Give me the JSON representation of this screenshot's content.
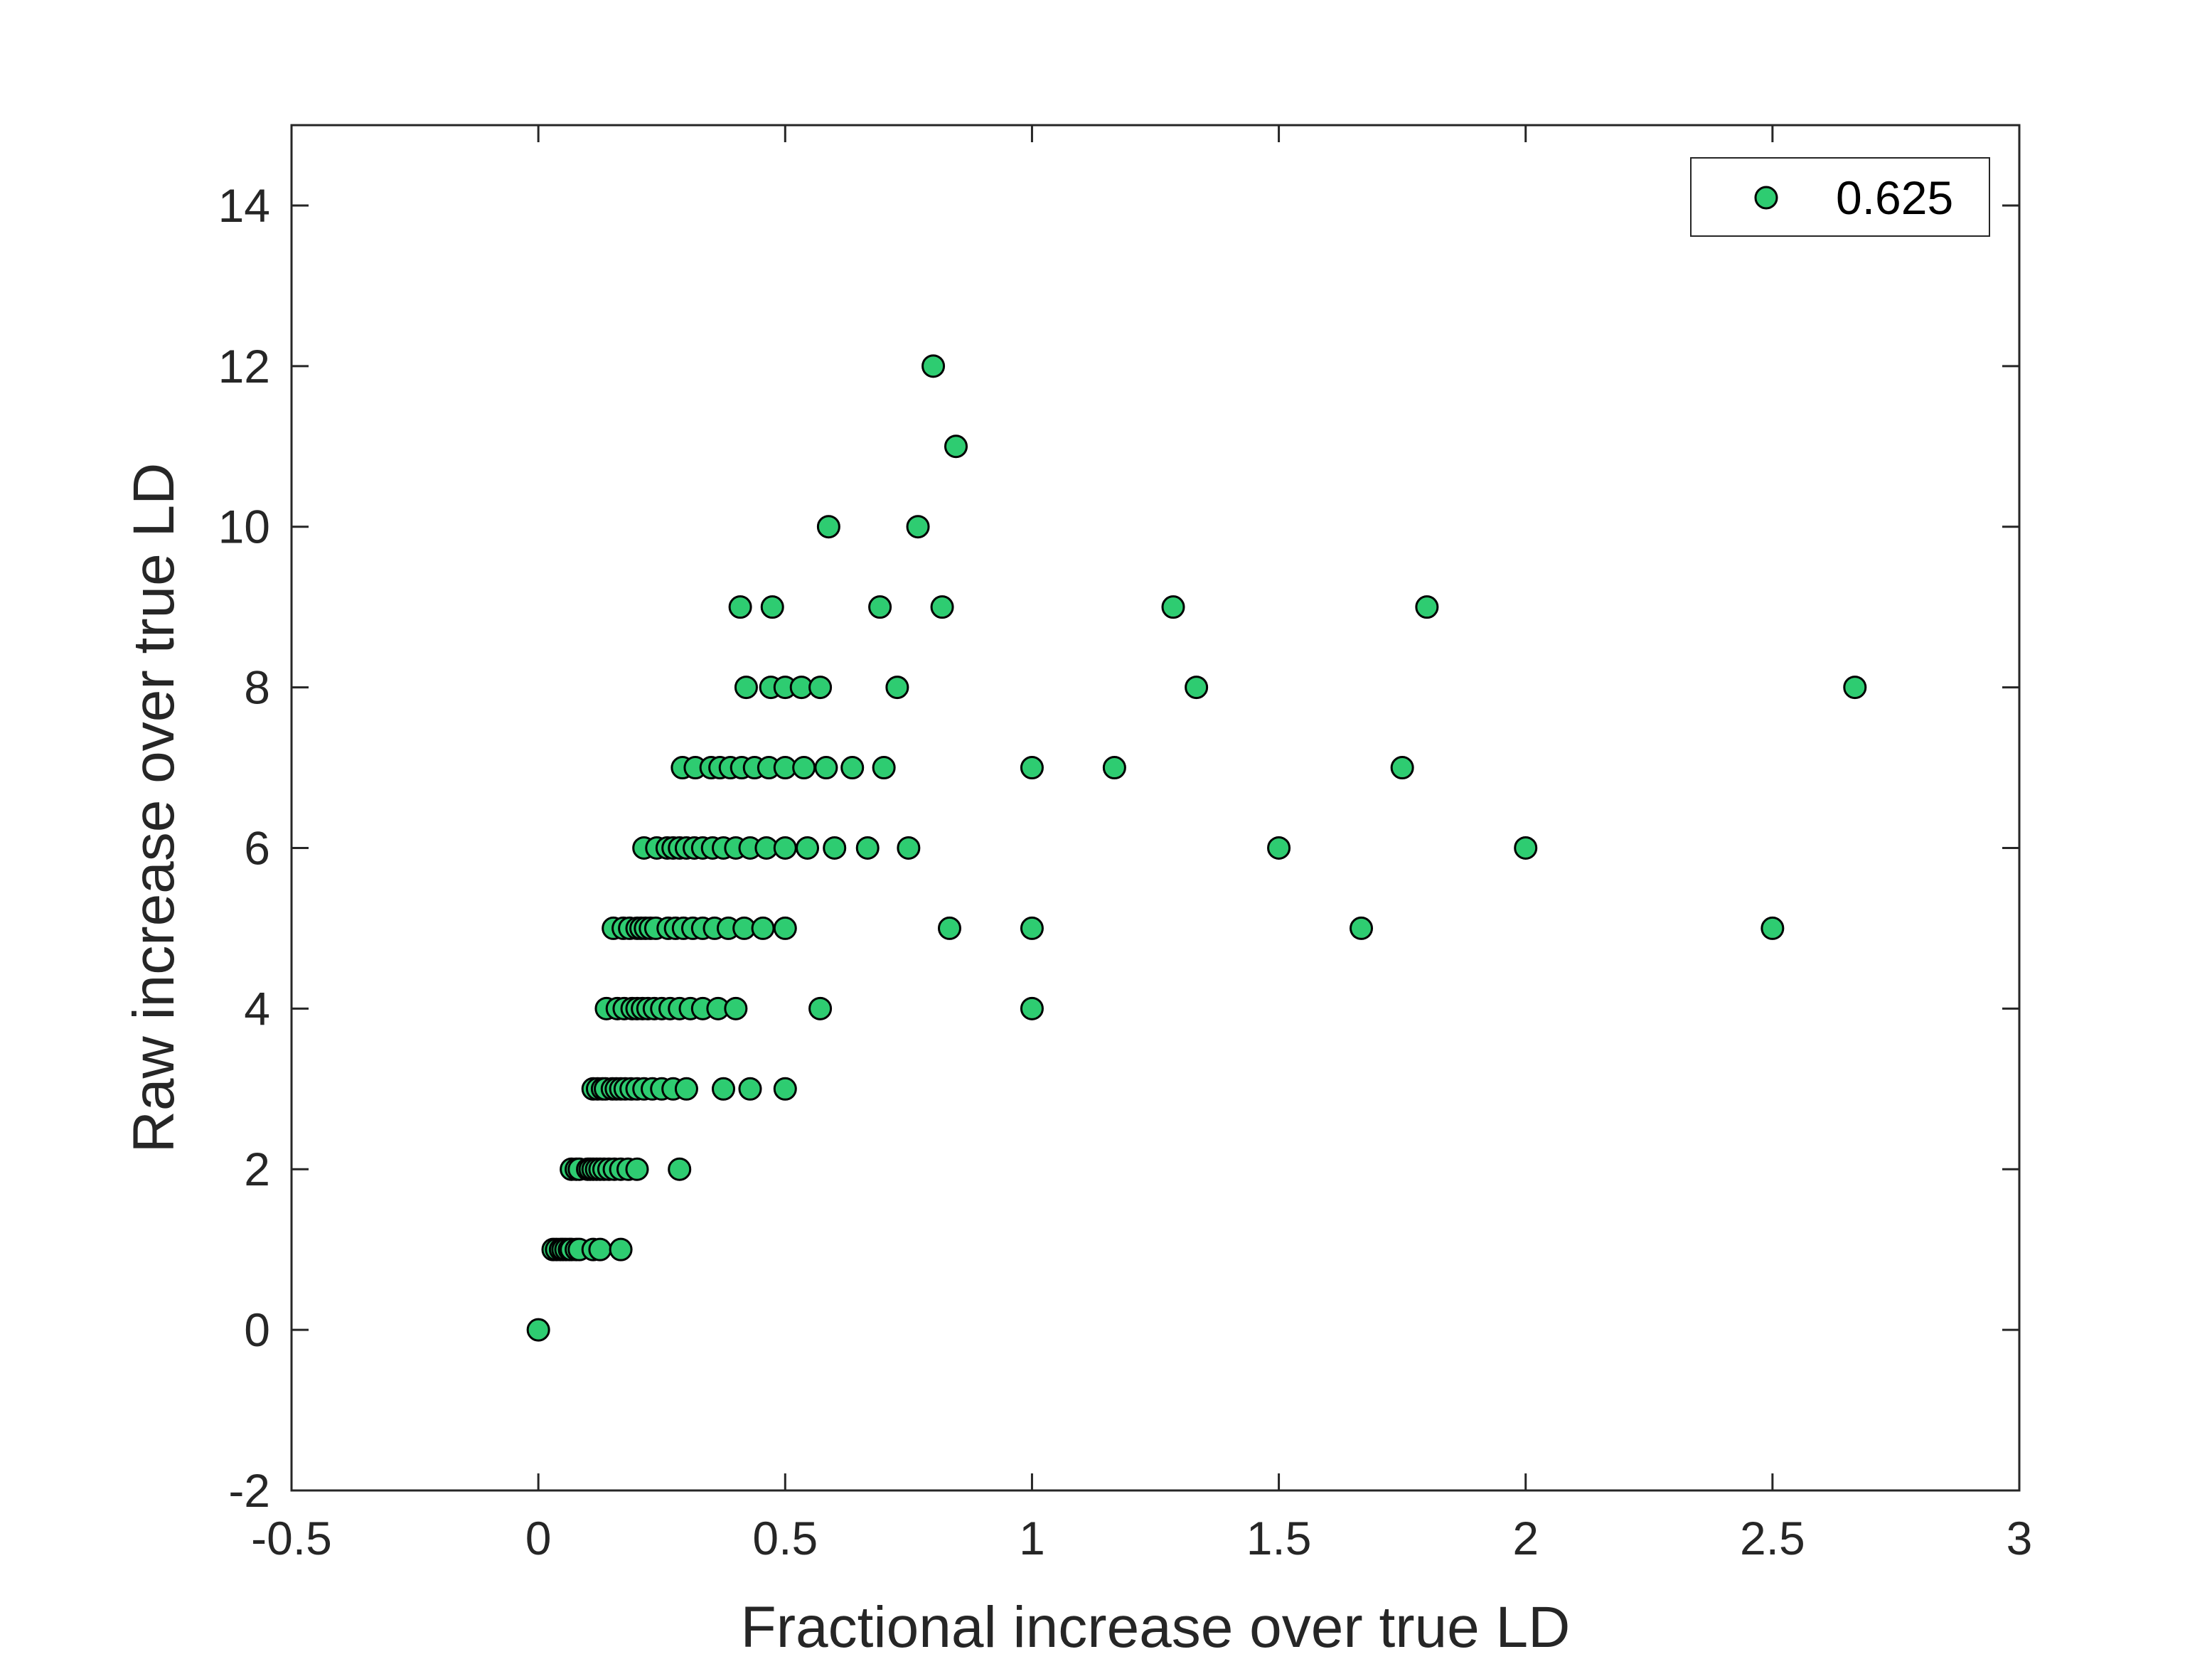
{
  "chart_data": {
    "type": "scatter",
    "xlabel": "Fractional increase over true LD",
    "ylabel": "Raw increase over true LD",
    "xlim": [
      -0.5,
      3
    ],
    "ylim": [
      -2,
      15
    ],
    "xticks": [
      -0.5,
      0,
      0.5,
      1,
      1.5,
      2,
      2.5,
      3
    ],
    "xtick_labels": [
      "-0.5",
      "0",
      "0.5",
      "1",
      "1.5",
      "2",
      "2.5",
      "3"
    ],
    "yticks": [
      -2,
      0,
      2,
      4,
      6,
      8,
      10,
      12,
      14
    ],
    "ytick_labels": [
      "-2",
      "0",
      "2",
      "4",
      "6",
      "8",
      "10",
      "12",
      "14"
    ],
    "grid": false,
    "box": true,
    "legend": {
      "position": "top-right"
    },
    "series": [
      {
        "name": "0.625",
        "color": "#2ecc71",
        "edge_color": "#000000",
        "marker": "circle",
        "points": [
          [
            0.0,
            0
          ],
          [
            0.03,
            1
          ],
          [
            0.037,
            1
          ],
          [
            0.045,
            1
          ],
          [
            0.05,
            1
          ],
          [
            0.056,
            1
          ],
          [
            0.063,
            1
          ],
          [
            0.067,
            1
          ],
          [
            0.077,
            1
          ],
          [
            0.083,
            1
          ],
          [
            0.111,
            1
          ],
          [
            0.125,
            1
          ],
          [
            0.167,
            1
          ],
          [
            0.067,
            2
          ],
          [
            0.077,
            2
          ],
          [
            0.083,
            2
          ],
          [
            0.1,
            2
          ],
          [
            0.105,
            2
          ],
          [
            0.111,
            2
          ],
          [
            0.118,
            2
          ],
          [
            0.125,
            2
          ],
          [
            0.133,
            2
          ],
          [
            0.143,
            2
          ],
          [
            0.154,
            2
          ],
          [
            0.167,
            2
          ],
          [
            0.182,
            2
          ],
          [
            0.2,
            2
          ],
          [
            0.286,
            2
          ],
          [
            0.111,
            3
          ],
          [
            0.12,
            3
          ],
          [
            0.13,
            3
          ],
          [
            0.136,
            3
          ],
          [
            0.15,
            3
          ],
          [
            0.158,
            3
          ],
          [
            0.167,
            3
          ],
          [
            0.176,
            3
          ],
          [
            0.188,
            3
          ],
          [
            0.2,
            3
          ],
          [
            0.214,
            3
          ],
          [
            0.231,
            3
          ],
          [
            0.25,
            3
          ],
          [
            0.273,
            3
          ],
          [
            0.3,
            3
          ],
          [
            0.375,
            3
          ],
          [
            0.429,
            3
          ],
          [
            0.5,
            3
          ],
          [
            0.138,
            4
          ],
          [
            0.16,
            4
          ],
          [
            0.174,
            4
          ],
          [
            0.19,
            4
          ],
          [
            0.2,
            4
          ],
          [
            0.211,
            4
          ],
          [
            0.222,
            4
          ],
          [
            0.235,
            4
          ],
          [
            0.25,
            4
          ],
          [
            0.267,
            4
          ],
          [
            0.286,
            4
          ],
          [
            0.308,
            4
          ],
          [
            0.333,
            4
          ],
          [
            0.364,
            4
          ],
          [
            0.4,
            4
          ],
          [
            0.571,
            4
          ],
          [
            1.0,
            4
          ],
          [
            0.152,
            5
          ],
          [
            0.172,
            5
          ],
          [
            0.185,
            5
          ],
          [
            0.2,
            5
          ],
          [
            0.208,
            5
          ],
          [
            0.217,
            5
          ],
          [
            0.227,
            5
          ],
          [
            0.238,
            5
          ],
          [
            0.263,
            5
          ],
          [
            0.278,
            5
          ],
          [
            0.294,
            5
          ],
          [
            0.313,
            5
          ],
          [
            0.333,
            5
          ],
          [
            0.357,
            5
          ],
          [
            0.385,
            5
          ],
          [
            0.417,
            5
          ],
          [
            0.455,
            5
          ],
          [
            0.5,
            5
          ],
          [
            0.833,
            5
          ],
          [
            1.0,
            5
          ],
          [
            1.667,
            5
          ],
          [
            2.5,
            5
          ],
          [
            0.214,
            6
          ],
          [
            0.24,
            6
          ],
          [
            0.261,
            6
          ],
          [
            0.273,
            6
          ],
          [
            0.286,
            6
          ],
          [
            0.3,
            6
          ],
          [
            0.316,
            6
          ],
          [
            0.333,
            6
          ],
          [
            0.353,
            6
          ],
          [
            0.375,
            6
          ],
          [
            0.4,
            6
          ],
          [
            0.429,
            6
          ],
          [
            0.462,
            6
          ],
          [
            0.5,
            6
          ],
          [
            0.545,
            6
          ],
          [
            0.6,
            6
          ],
          [
            0.667,
            6
          ],
          [
            0.75,
            6
          ],
          [
            1.5,
            6
          ],
          [
            2.0,
            6
          ],
          [
            0.292,
            7
          ],
          [
            0.318,
            7
          ],
          [
            0.35,
            7
          ],
          [
            0.368,
            7
          ],
          [
            0.389,
            7
          ],
          [
            0.412,
            7
          ],
          [
            0.438,
            7
          ],
          [
            0.467,
            7
          ],
          [
            0.5,
            7
          ],
          [
            0.538,
            7
          ],
          [
            0.583,
            7
          ],
          [
            0.636,
            7
          ],
          [
            0.7,
            7
          ],
          [
            1.0,
            7
          ],
          [
            1.167,
            7
          ],
          [
            1.75,
            7
          ],
          [
            0.421,
            8
          ],
          [
            0.471,
            8
          ],
          [
            0.5,
            8
          ],
          [
            0.533,
            8
          ],
          [
            0.571,
            8
          ],
          [
            0.727,
            8
          ],
          [
            1.333,
            8
          ],
          [
            2.667,
            8
          ],
          [
            0.409,
            9
          ],
          [
            0.474,
            9
          ],
          [
            0.692,
            9
          ],
          [
            0.818,
            9
          ],
          [
            1.286,
            9
          ],
          [
            1.8,
            9
          ],
          [
            0.588,
            10
          ],
          [
            0.769,
            10
          ],
          [
            0.846,
            11
          ],
          [
            0.8,
            12
          ]
        ]
      }
    ]
  }
}
